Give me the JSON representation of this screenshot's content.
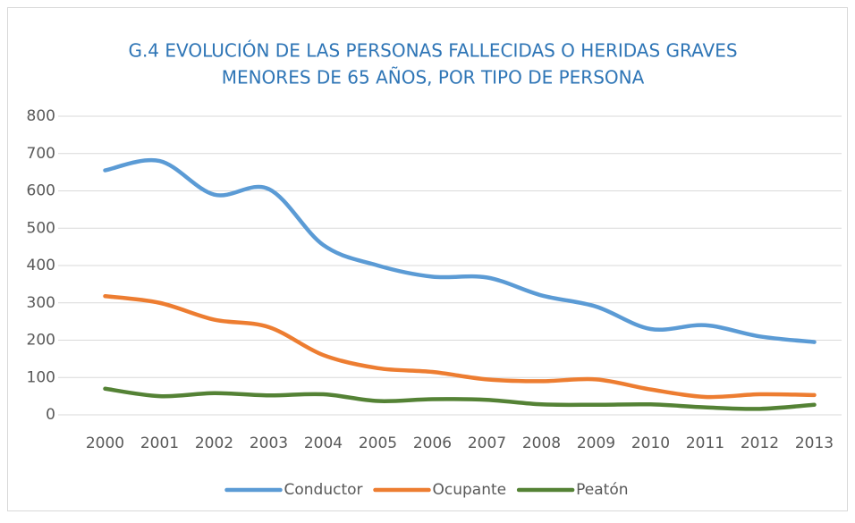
{
  "chart_data": {
    "type": "line",
    "title": [
      "G.4 EVOLUCIÓN DE LAS PERSONAS FALLECIDAS O HERIDAS GRAVES",
      "MENORES DE 65 AÑOS, POR TIPO DE PERSONA"
    ],
    "categories": [
      "2000",
      "2001",
      "2002",
      "2003",
      "2004",
      "2005",
      "2006",
      "2007",
      "2008",
      "2009",
      "2010",
      "2011",
      "2012",
      "2013"
    ],
    "series": [
      {
        "name": "Conductor",
        "color": "#5b9bd5",
        "values": [
          655,
          680,
          590,
          605,
          455,
          400,
          370,
          368,
          320,
          290,
          230,
          240,
          210,
          195
        ]
      },
      {
        "name": "Ocupante",
        "color": "#ed7d31",
        "values": [
          318,
          300,
          255,
          235,
          160,
          125,
          115,
          95,
          90,
          95,
          68,
          48,
          55,
          53
        ]
      },
      {
        "name": "Peatón",
        "color": "#548235",
        "values": [
          70,
          50,
          58,
          52,
          55,
          37,
          42,
          40,
          28,
          27,
          28,
          20,
          16,
          27
        ]
      }
    ],
    "ylim": [
      0,
      800
    ],
    "yticks": [
      0,
      100,
      200,
      300,
      400,
      500,
      600,
      700,
      800
    ],
    "grid": true,
    "legend": "bottom"
  }
}
